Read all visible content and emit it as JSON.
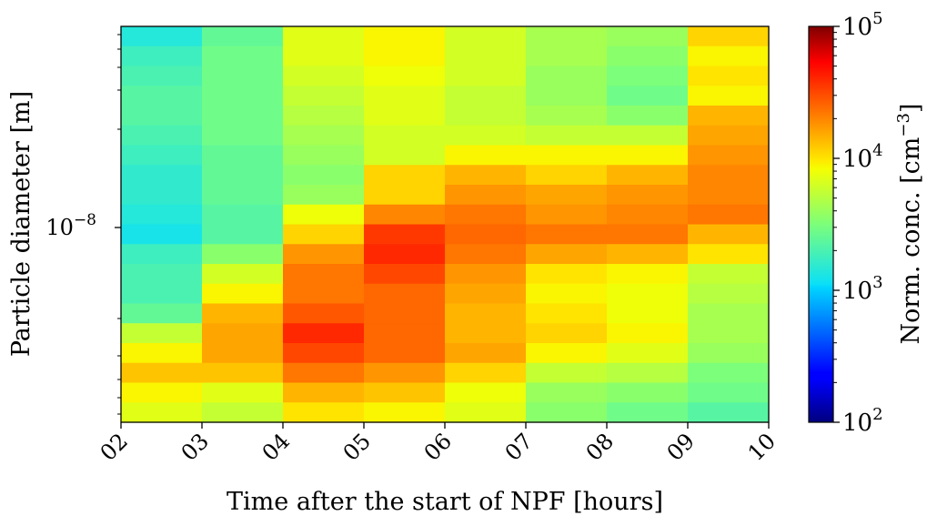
{
  "chart_data": {
    "type": "heatmap",
    "title": "",
    "xlabel": "Time after the start of NPF [hours]",
    "ylabel": "Particle diameter [m]",
    "x_tick_labels": [
      "02",
      "03",
      "04",
      "05",
      "06",
      "07",
      "08",
      "09",
      "10"
    ],
    "y_scale": "log",
    "y_tick_labels": [
      {
        "base": "10",
        "exp": "−8"
      }
    ],
    "colorbar": {
      "label": "Norm. conc. [cm",
      "label_exp": "−3",
      "label_end": "]",
      "scale": "log",
      "range": [
        100,
        100000
      ],
      "colormap": "jet",
      "ticks": [
        {
          "base": "10",
          "exp": "2"
        },
        {
          "base": "10",
          "exp": "3"
        },
        {
          "base": "10",
          "exp": "4"
        },
        {
          "base": "10",
          "exp": "5"
        }
      ]
    },
    "x_bins": [
      "02-03",
      "03-04",
      "04-05",
      "05-06",
      "06-07",
      "07-08",
      "08-09",
      "09-10"
    ],
    "rows_note": "log10 concentration per cell; rows listed from top (largest diameter) to bottom (smallest)",
    "log10_values": [
      [
        3.15,
        3.4,
        3.85,
        3.95,
        3.8,
        3.65,
        3.6,
        4.05
      ],
      [
        3.25,
        3.45,
        3.85,
        3.95,
        3.8,
        3.65,
        3.55,
        3.95
      ],
      [
        3.3,
        3.45,
        3.8,
        3.9,
        3.8,
        3.6,
        3.5,
        4.0
      ],
      [
        3.35,
        3.45,
        3.75,
        3.85,
        3.75,
        3.6,
        3.45,
        3.95
      ],
      [
        3.35,
        3.45,
        3.7,
        3.85,
        3.75,
        3.65,
        3.55,
        4.15
      ],
      [
        3.3,
        3.45,
        3.65,
        3.8,
        3.8,
        3.75,
        3.75,
        4.2
      ],
      [
        3.25,
        3.4,
        3.6,
        3.8,
        3.95,
        3.95,
        3.95,
        4.25
      ],
      [
        3.2,
        3.4,
        3.55,
        4.05,
        4.15,
        4.05,
        4.15,
        4.3
      ],
      [
        3.2,
        3.4,
        3.6,
        4.05,
        4.25,
        4.2,
        4.25,
        4.3
      ],
      [
        3.15,
        3.35,
        3.9,
        4.3,
        4.35,
        4.25,
        4.3,
        4.35
      ],
      [
        3.1,
        3.35,
        4.05,
        4.55,
        4.4,
        4.35,
        4.35,
        4.15
      ],
      [
        3.25,
        3.55,
        4.25,
        4.6,
        4.35,
        4.2,
        4.15,
        4.0
      ],
      [
        3.3,
        3.8,
        4.35,
        4.5,
        4.25,
        4.0,
        3.95,
        3.75
      ],
      [
        3.3,
        3.95,
        4.35,
        4.4,
        4.2,
        3.95,
        3.9,
        3.7
      ],
      [
        3.4,
        4.15,
        4.45,
        4.4,
        4.15,
        4.0,
        3.9,
        3.65
      ],
      [
        3.75,
        4.2,
        4.6,
        4.4,
        4.15,
        4.05,
        3.95,
        3.65
      ],
      [
        3.95,
        4.2,
        4.5,
        4.4,
        4.2,
        3.95,
        3.85,
        3.6
      ],
      [
        4.1,
        4.1,
        4.35,
        4.25,
        4.05,
        3.75,
        3.7,
        3.5
      ],
      [
        3.95,
        3.85,
        4.15,
        4.1,
        3.9,
        3.6,
        3.55,
        3.45
      ],
      [
        3.85,
        3.75,
        4.0,
        3.95,
        3.85,
        3.55,
        3.45,
        3.35
      ]
    ]
  }
}
